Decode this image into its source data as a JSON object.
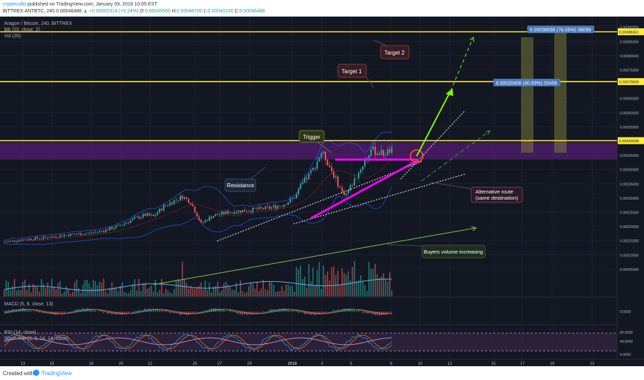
{
  "header": {
    "author": "cryptoculto",
    "published_text": "published on TradingView.com, January 09, 2018 10:05 EST",
    "symbol_line": "BITTREX:ANTBTC, 240",
    "last": "0.00046488",
    "change": "▲ +0.00002314 (+5.24%)",
    "o_label": "O:",
    "o_value": "0.00045500",
    "h_label": "H:",
    "h_value": "0.00046700",
    "l_label": "L:",
    "l_value": "0.00045100",
    "c_label": "C:",
    "c_value": "0.00046488"
  },
  "legend": {
    "title": "Aragon / Bitcoin, 240, BITTREX",
    "bb": "BB (20, close, 2)",
    "vol": "Vol (20)",
    "macd": "MACD (5, 8, close, 13)",
    "rsi": "RSI (14, close)",
    "stoch": "Stoch RSI (3, 3, 14, 14, close)"
  },
  "footer": {
    "created_with": "Created with",
    "brand": "TradingView"
  },
  "colors": {
    "background": "#131722",
    "up": "#26a69a",
    "down": "#ef5350",
    "level": "#ffeb3b",
    "zone": "#7b1fa2",
    "triangle": "#ff00ff",
    "arrow": "#76ff03"
  },
  "chart_data": [
    {
      "type": "candlestick",
      "title": "Aragon / Bitcoin, 240, BITTREX",
      "x_ticks": [
        "13",
        "15",
        "18",
        "20",
        "22",
        "25",
        "27",
        "29",
        "2018",
        "3",
        "5",
        "8",
        "10",
        "12",
        "15",
        "17",
        "19",
        "22"
      ],
      "y_ticks": [
        "0.00090000",
        "0.00085000",
        "0.00080000",
        "0.00075000",
        "0.00065000",
        "0.00060000",
        "0.00055000",
        "0.00045000",
        "0.00040000",
        "0.00035000",
        "0.00030000",
        "0.00025000",
        "0.00020000",
        "0.00015000",
        "0.00010000",
        "0.00005000"
      ],
      "ylim": [
        3e-05,
        0.00092
      ],
      "price_path": [
        [
          0,
          0.000145
        ],
        [
          10,
          0.000155
        ],
        [
          20,
          0.00016
        ],
        [
          30,
          0.00017
        ],
        [
          40,
          0.000175
        ],
        [
          48,
          0.000185
        ],
        [
          55,
          0.0002
        ],
        [
          62,
          0.000225
        ],
        [
          68,
          0.00024
        ],
        [
          72,
          0.000235
        ],
        [
          77,
          0.00027
        ],
        [
          82,
          0.00029
        ],
        [
          86,
          0.000305
        ],
        [
          90,
          0.000285
        ],
        [
          95,
          0.00021
        ],
        [
          100,
          0.000235
        ],
        [
          108,
          0.00025
        ],
        [
          115,
          0.000255
        ],
        [
          122,
          0.00026
        ],
        [
          128,
          0.000265
        ],
        [
          134,
          0.000275
        ],
        [
          138,
          0.00029
        ],
        [
          141,
          0.00031
        ],
        [
          143,
          0.00034
        ],
        [
          146,
          0.00037
        ],
        [
          149,
          0.0004
        ],
        [
          151,
          0.00043
        ],
        [
          153,
          0.00046
        ],
        [
          155,
          0.00044
        ],
        [
          158,
          0.000395
        ],
        [
          161,
          0.00035
        ],
        [
          163,
          0.00032
        ],
        [
          165,
          0.000315
        ],
        [
          168,
          0.00035
        ],
        [
          171,
          0.00039
        ],
        [
          174,
          0.00043
        ],
        [
          177,
          0.00047
        ],
        [
          180,
          0.00046
        ],
        [
          183,
          0.000455
        ],
        [
          186,
          0.000465
        ],
        [
          187,
          0.000465
        ]
      ],
      "levels": [
        {
          "name": "target-2",
          "value": 0.00088351,
          "label": "0.00088351"
        },
        {
          "name": "target-1",
          "value": 0.00070839,
          "label": "0.00070839"
        },
        {
          "name": "trigger",
          "value": 0.00050099,
          "label": "0.00050099"
        }
      ],
      "resistance_zone": [
        0.000435,
        0.000495
      ],
      "measure_boxes": [
        {
          "label": "0.00020456 (40.83%) 20456"
        },
        {
          "label": "0.00038098 (76.05%) 38098"
        }
      ],
      "annotations": [
        "Target 2",
        "Target 1",
        "Trigger",
        "Resistance",
        "Alternative route\n(same destination)",
        "Buyers volume increasing"
      ]
    },
    {
      "type": "line",
      "title": "MACD (5, 8, close, 13)",
      "y_ticks": [
        "0.0000"
      ]
    },
    {
      "type": "line",
      "title": "RSI (14, close)",
      "y_ticks": [
        "80.0000",
        "40.0000",
        "0.0000"
      ]
    }
  ]
}
